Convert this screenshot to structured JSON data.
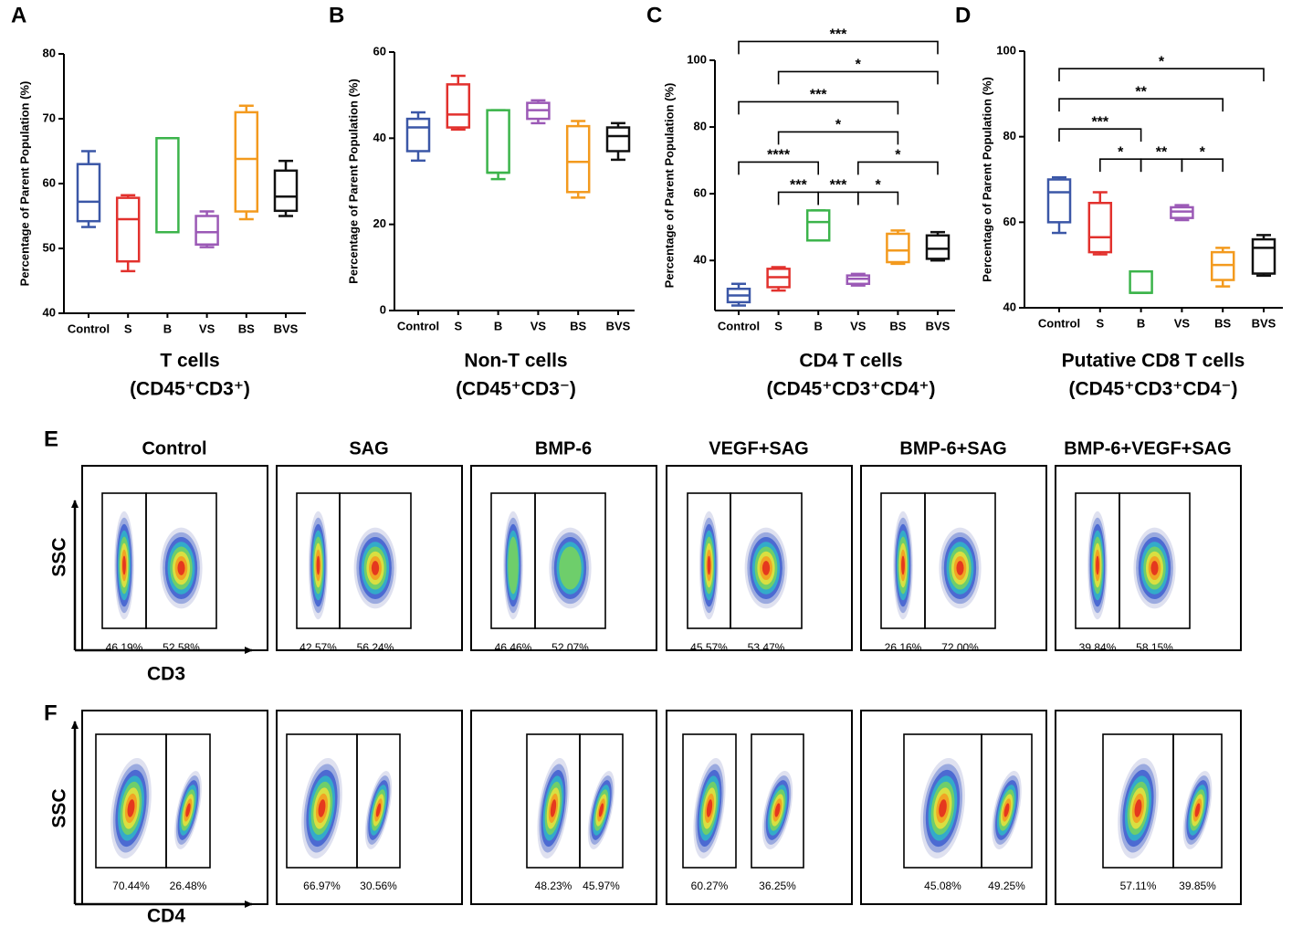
{
  "chart_data": [
    {
      "type": "box",
      "panel_label": "A",
      "title": "T cells",
      "subtitle": "(CD45⁺CD3⁺)",
      "y_label": "Percentage of Parent Population (%)",
      "categories": [
        "Control",
        "S",
        "B",
        "VS",
        "BS",
        "BVS"
      ],
      "colors": [
        "#3b57a7",
        "#e2312d",
        "#3cb44b",
        "#9b59b6",
        "#f39a1e",
        "#111111"
      ],
      "boxes": [
        {
          "min": 53.3,
          "q1": 54.2,
          "median": 57.2,
          "q3": 63,
          "max": 65
        },
        {
          "min": 46.5,
          "q1": 48,
          "median": 54.5,
          "q3": 57.8,
          "max": 58.2
        },
        {
          "min": 52.5,
          "q1": 52.5,
          "median": 67,
          "q3": 67,
          "max": 67
        },
        {
          "min": 50.2,
          "q1": 50.6,
          "median": 52.5,
          "q3": 55,
          "max": 55.7
        },
        {
          "min": 54.5,
          "q1": 55.7,
          "median": 63.8,
          "q3": 71,
          "max": 72
        },
        {
          "min": 55,
          "q1": 55.8,
          "median": 58,
          "q3": 62,
          "max": 63.5
        }
      ],
      "ylim": [
        40,
        80
      ],
      "yticks": [
        40,
        50,
        60,
        70,
        80
      ],
      "significance": []
    },
    {
      "type": "box",
      "panel_label": "B",
      "title": "Non-T cells",
      "subtitle": "(CD45⁺CD3⁻)",
      "y_label": "Percentage of Parent Population (%)",
      "categories": [
        "Control",
        "S",
        "B",
        "VS",
        "BS",
        "BVS"
      ],
      "colors": [
        "#3b57a7",
        "#e2312d",
        "#3cb44b",
        "#9b59b6",
        "#f39a1e",
        "#111111"
      ],
      "boxes": [
        {
          "min": 34.8,
          "q1": 37,
          "median": 42.5,
          "q3": 44.5,
          "max": 46
        },
        {
          "min": 42,
          "q1": 42.5,
          "median": 45.5,
          "q3": 52.5,
          "max": 54.5
        },
        {
          "min": 30.5,
          "q1": 32,
          "median": 32,
          "q3": 46.5,
          "max": 46.5
        },
        {
          "min": 43.5,
          "q1": 44.5,
          "median": 46.5,
          "q3": 48.2,
          "max": 48.8
        },
        {
          "min": 26.2,
          "q1": 27.5,
          "median": 34.5,
          "q3": 42.8,
          "max": 44
        },
        {
          "min": 35,
          "q1": 37,
          "median": 40.5,
          "q3": 42.5,
          "max": 43.5
        }
      ],
      "ylim": [
        0,
        60
      ],
      "yticks": [
        0,
        20,
        40,
        60
      ],
      "significance": []
    },
    {
      "type": "box",
      "panel_label": "C",
      "title": "CD4 T cells",
      "subtitle": "(CD45⁺CD3⁺CD4⁺)",
      "y_label": "Percentage of Parent Population (%)",
      "categories": [
        "Control",
        "S",
        "B",
        "VS",
        "BS",
        "BVS"
      ],
      "colors": [
        "#3b57a7",
        "#e2312d",
        "#3cb44b",
        "#9b59b6",
        "#f39a1e",
        "#111111"
      ],
      "boxes": [
        {
          "min": 26.5,
          "q1": 27.5,
          "median": 29.5,
          "q3": 31.5,
          "max": 33
        },
        {
          "min": 31,
          "q1": 32,
          "median": 35,
          "q3": 37.5,
          "max": 38
        },
        {
          "min": 46,
          "q1": 46,
          "median": 51.5,
          "q3": 55,
          "max": 55
        },
        {
          "min": 32.5,
          "q1": 33,
          "median": 34.5,
          "q3": 35.5,
          "max": 36
        },
        {
          "min": 39,
          "q1": 39.5,
          "median": 43,
          "q3": 48,
          "max": 49
        },
        {
          "min": 40,
          "q1": 40.5,
          "median": 43.5,
          "q3": 47.5,
          "max": 48.5
        }
      ],
      "ylim": [
        25,
        100
      ],
      "yticks": [
        40,
        60,
        80,
        100
      ],
      "significance": [
        {
          "from": "S",
          "to": "B",
          "label": "***"
        },
        {
          "from": "B",
          "to": "VS",
          "label": "***"
        },
        {
          "from": "VS",
          "to": "BS",
          "label": "*"
        },
        {
          "from": "Control",
          "to": "B",
          "label": "****"
        },
        {
          "from": "VS",
          "to": "BVS",
          "label": "*"
        },
        {
          "from": "S",
          "to": "BS",
          "label": "*"
        },
        {
          "from": "Control",
          "to": "BS",
          "label": "***"
        },
        {
          "from": "S",
          "to": "BVS",
          "label": "*"
        },
        {
          "from": "Control",
          "to": "BVS",
          "label": "***"
        }
      ]
    },
    {
      "type": "box",
      "panel_label": "D",
      "title": "Putative CD8 T cells",
      "subtitle": "(CD45⁺CD3⁺CD4⁻)",
      "y_label": "Percentage of Parent Population (%)",
      "categories": [
        "Control",
        "S",
        "B",
        "VS",
        "BS",
        "BVS"
      ],
      "colors": [
        "#3b57a7",
        "#e2312d",
        "#3cb44b",
        "#9b59b6",
        "#f39a1e",
        "#111111"
      ],
      "boxes": [
        {
          "min": 57.5,
          "q1": 60,
          "median": 67,
          "q3": 70,
          "max": 70.5
        },
        {
          "min": 52.5,
          "q1": 53,
          "median": 56.5,
          "q3": 64.5,
          "max": 67
        },
        {
          "min": 43.5,
          "q1": 43.5,
          "median": 43.5,
          "q3": 48.5,
          "max": 48.5
        },
        {
          "min": 60.5,
          "q1": 61,
          "median": 62.5,
          "q3": 63.5,
          "max": 64
        },
        {
          "min": 45,
          "q1": 46.5,
          "median": 50,
          "q3": 53,
          "max": 54
        },
        {
          "min": 47.5,
          "q1": 48,
          "median": 54,
          "q3": 56,
          "max": 57
        }
      ],
      "ylim": [
        40,
        100
      ],
      "yticks": [
        40,
        60,
        80,
        100
      ],
      "significance": [
        {
          "from": "S",
          "to": "B",
          "label": "*"
        },
        {
          "from": "B",
          "to": "VS",
          "label": "**"
        },
        {
          "from": "VS",
          "to": "BS",
          "label": "*"
        },
        {
          "from": "Control",
          "to": "B",
          "label": "***"
        },
        {
          "from": "Control",
          "to": "BS",
          "label": "**"
        },
        {
          "from": "Control",
          "to": "BVS",
          "label": "*"
        }
      ]
    }
  ],
  "flow": {
    "groups": [
      "Control",
      "SAG",
      "BMP-6",
      "VEGF+SAG",
      "BMP-6+SAG",
      "BMP-6+VEGF+SAG"
    ],
    "rows": [
      {
        "panel_label": "E",
        "x_axis": "CD3",
        "y_axis": "SSC",
        "plots": [
          [
            "46.19%",
            "52.58%"
          ],
          [
            "42.57%",
            "56.24%"
          ],
          [
            "46.46%",
            "52.07%"
          ],
          [
            "45.57%",
            "53.47%"
          ],
          [
            "26.16%",
            "72.00%"
          ],
          [
            "39.84%",
            "58.15%"
          ]
        ]
      },
      {
        "panel_label": "F",
        "x_axis": "CD4",
        "y_axis": "SSC",
        "plots": [
          [
            "70.44%",
            "26.48%"
          ],
          [
            "66.97%",
            "30.56%"
          ],
          [
            "48.23%",
            "45.97%"
          ],
          [
            "60.27%",
            "36.25%"
          ],
          [
            "45.08%",
            "49.25%"
          ],
          [
            "57.11%",
            "39.85%"
          ]
        ]
      }
    ]
  }
}
